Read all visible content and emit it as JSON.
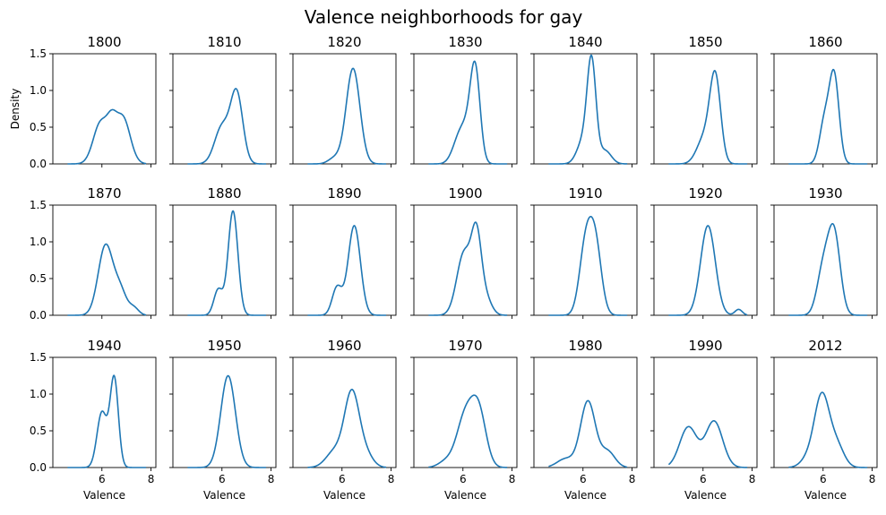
{
  "chart_data": {
    "type": "line",
    "title": "Valence neighborhoods for gay",
    "xlabel": "Valence",
    "ylabel": "Density",
    "xlim": [
      4.0,
      8.2
    ],
    "ylim": [
      0,
      1.5
    ],
    "xticks": [
      6,
      8
    ],
    "yticks": [
      0.0,
      0.5,
      1.0,
      1.5
    ],
    "ytick_labels": [
      "0.0",
      "0.5",
      "1.0",
      "1.5"
    ],
    "grid": false,
    "line_color": "#1f77b4",
    "panels": [
      {
        "year": "1800",
        "peaks": [
          [
            5.95,
            0.3,
            0.56
          ],
          [
            6.4,
            0.2,
            0.35
          ],
          [
            6.85,
            0.3,
            0.63
          ]
        ]
      },
      {
        "year": "1810",
        "peaks": [
          [
            6.0,
            0.3,
            0.5
          ],
          [
            6.6,
            0.25,
            0.95
          ]
        ]
      },
      {
        "year": "1820",
        "peaks": [
          [
            5.7,
            0.25,
            0.08
          ],
          [
            6.45,
            0.28,
            1.3
          ]
        ]
      },
      {
        "year": "1830",
        "peaks": [
          [
            5.75,
            0.25,
            0.15
          ],
          [
            6.1,
            0.3,
            0.45
          ],
          [
            6.5,
            0.2,
            1.2
          ]
        ]
      },
      {
        "year": "1840",
        "peaks": [
          [
            6.0,
            0.25,
            0.3
          ],
          [
            6.35,
            0.18,
            1.35
          ],
          [
            6.9,
            0.25,
            0.18
          ]
        ]
      },
      {
        "year": "1850",
        "peaks": [
          [
            6.05,
            0.3,
            0.35
          ],
          [
            6.5,
            0.22,
            1.15
          ]
        ]
      },
      {
        "year": "1860",
        "peaks": [
          [
            6.05,
            0.2,
            0.55
          ],
          [
            6.45,
            0.2,
            1.2
          ]
        ]
      },
      {
        "year": "1870",
        "peaks": [
          [
            6.15,
            0.3,
            0.95
          ],
          [
            6.75,
            0.25,
            0.32
          ],
          [
            7.3,
            0.2,
            0.1
          ]
        ]
      },
      {
        "year": "1880",
        "peaks": [
          [
            5.85,
            0.18,
            0.35
          ],
          [
            6.45,
            0.2,
            1.42
          ]
        ]
      },
      {
        "year": "1890",
        "peaks": [
          [
            5.8,
            0.2,
            0.38
          ],
          [
            6.5,
            0.25,
            1.22
          ]
        ]
      },
      {
        "year": "1900",
        "peaks": [
          [
            6.05,
            0.3,
            0.85
          ],
          [
            6.55,
            0.2,
            0.95
          ],
          [
            6.9,
            0.25,
            0.25
          ]
        ]
      },
      {
        "year": "1910",
        "peaks": [
          [
            6.1,
            0.25,
            0.9
          ],
          [
            6.5,
            0.25,
            0.95
          ]
        ]
      },
      {
        "year": "1920",
        "peaks": [
          [
            6.2,
            0.3,
            1.22
          ],
          [
            7.45,
            0.15,
            0.08
          ]
        ]
      },
      {
        "year": "1930",
        "peaks": [
          [
            6.0,
            0.25,
            0.6
          ],
          [
            6.45,
            0.25,
            1.1
          ]
        ]
      },
      {
        "year": "1940",
        "peaks": [
          [
            6.0,
            0.2,
            0.75
          ],
          [
            6.5,
            0.17,
            1.22
          ]
        ]
      },
      {
        "year": "1950",
        "peaks": [
          [
            6.25,
            0.3,
            1.25
          ]
        ]
      },
      {
        "year": "1960",
        "peaks": [
          [
            5.7,
            0.35,
            0.22
          ],
          [
            6.4,
            0.3,
            1.0
          ],
          [
            6.95,
            0.3,
            0.18
          ]
        ]
      },
      {
        "year": "1970",
        "peaks": [
          [
            5.3,
            0.3,
            0.08
          ],
          [
            6.1,
            0.35,
            0.7
          ],
          [
            6.65,
            0.3,
            0.7
          ]
        ]
      },
      {
        "year": "1980",
        "peaks": [
          [
            5.3,
            0.35,
            0.12
          ],
          [
            6.2,
            0.3,
            0.9
          ],
          [
            7.0,
            0.3,
            0.22
          ]
        ]
      },
      {
        "year": "1990",
        "peaks": [
          [
            5.4,
            0.35,
            0.55
          ],
          [
            6.45,
            0.35,
            0.63
          ]
        ]
      },
      {
        "year": "2012",
        "peaks": [
          [
            5.4,
            0.3,
            0.12
          ],
          [
            5.95,
            0.3,
            0.96
          ],
          [
            6.55,
            0.3,
            0.3
          ]
        ]
      }
    ]
  }
}
